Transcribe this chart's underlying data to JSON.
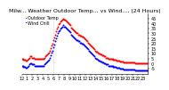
{
  "title": "Milw... Weather Outdoor Temp... vs Wind..., (24 Hours)",
  "legend": [
    "Outdoor Temp",
    "Wind Chill"
  ],
  "temp_color": "#ff0000",
  "chill_color": "#0000ff",
  "background_color": "#ffffff",
  "temp_values": [
    5,
    5,
    4,
    4,
    4,
    3,
    3,
    4,
    5,
    6,
    7,
    7,
    6,
    6,
    6,
    5,
    5,
    5,
    5,
    5,
    5,
    5,
    5,
    5,
    5,
    5,
    6,
    7,
    8,
    9,
    10,
    11,
    13,
    15,
    18,
    20,
    23,
    26,
    29,
    32,
    35,
    37,
    39,
    40,
    42,
    43,
    44,
    45,
    44,
    44,
    43,
    42,
    41,
    40,
    39,
    38,
    36,
    35,
    34,
    33,
    32,
    31,
    30,
    30,
    29,
    29,
    28,
    28,
    27,
    27,
    26,
    25,
    24,
    23,
    22,
    21,
    20,
    19,
    18,
    17,
    16,
    15,
    14,
    13,
    12,
    12,
    11,
    10,
    10,
    9,
    9,
    8,
    8,
    7,
    7,
    6,
    6,
    6,
    5,
    5,
    5,
    5,
    5,
    5,
    4,
    4,
    4,
    4,
    3,
    3,
    3,
    3,
    2,
    2,
    2,
    2,
    1,
    1,
    1,
    1,
    1,
    1,
    1,
    1,
    1,
    1,
    1,
    1,
    1,
    0,
    0,
    0,
    0,
    0,
    0,
    0,
    0,
    0,
    0,
    0,
    0,
    0,
    0,
    0
  ],
  "chill_values": [
    -2,
    -2,
    -3,
    -3,
    -3,
    -4,
    -4,
    -3,
    -2,
    -1,
    0,
    0,
    -1,
    -1,
    -1,
    -2,
    -2,
    -2,
    -2,
    -2,
    -2,
    -2,
    -2,
    -2,
    -2,
    -2,
    -1,
    0,
    1,
    2,
    3,
    4,
    6,
    8,
    11,
    13,
    16,
    19,
    22,
    25,
    28,
    30,
    32,
    33,
    35,
    36,
    37,
    38,
    37,
    37,
    36,
    35,
    34,
    33,
    32,
    31,
    29,
    28,
    27,
    26,
    25,
    24,
    23,
    23,
    22,
    22,
    21,
    21,
    20,
    20,
    19,
    18,
    17,
    16,
    15,
    14,
    13,
    12,
    11,
    10,
    9,
    8,
    7,
    6,
    5,
    5,
    4,
    3,
    3,
    2,
    2,
    1,
    1,
    0,
    0,
    -1,
    -1,
    -1,
    -2,
    -2,
    -2,
    -2,
    -2,
    -2,
    -3,
    -3,
    -3,
    -3,
    -4,
    -4,
    -4,
    -4,
    -5,
    -5,
    -5,
    -5,
    -6,
    -6,
    -6,
    -6,
    -6,
    -6,
    -6,
    -6,
    -6,
    -6,
    -6,
    -6,
    -6,
    -7,
    -7,
    -7,
    -7,
    -7,
    -7,
    -7,
    -7,
    -7,
    -7,
    -7,
    -7,
    -7,
    -7,
    -7
  ],
  "ylim": [
    -10,
    50
  ],
  "xlim": [
    0,
    143
  ],
  "yticks": [
    -5,
    0,
    5,
    10,
    15,
    20,
    25,
    30,
    35,
    40,
    45
  ],
  "ytick_labels": [
    "-5",
    "0",
    "5",
    "10",
    "15",
    "20",
    "25",
    "30",
    "35",
    "40",
    "45"
  ],
  "num_points": 144,
  "vline_x": 36,
  "font_size_title": 4.5,
  "font_size_tick": 3.5,
  "font_size_legend": 3.5,
  "dot_size": 2.0,
  "xtick_count": 24,
  "ylabel_side": "right"
}
